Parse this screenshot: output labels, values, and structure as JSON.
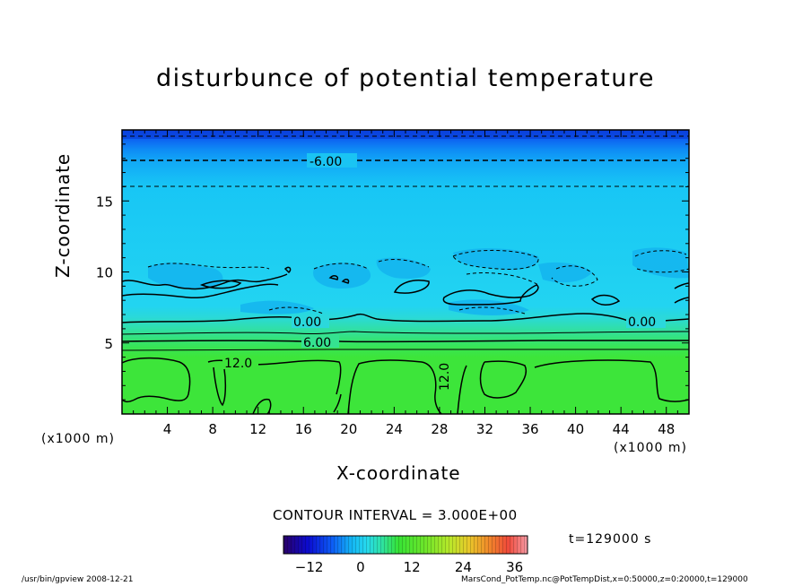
{
  "chart_data": {
    "type": "heatmap",
    "title": "disturbunce of potential temperature",
    "xlabel": "X-coordinate",
    "ylabel": "Z-coordinate",
    "x_unit": "(x1000 m)",
    "y_unit": "(x1000 m)",
    "xlim": [
      0,
      50
    ],
    "ylim": [
      0,
      20
    ],
    "x_ticks": [
      4,
      8,
      12,
      16,
      20,
      24,
      28,
      32,
      36,
      40,
      44,
      48
    ],
    "y_ticks": [
      5,
      10,
      15
    ],
    "contour_labels": [
      {
        "text": "-6.00",
        "x": 19.5,
        "z": 18
      },
      {
        "text": "0.00",
        "x": 16.7,
        "z": 6.4
      },
      {
        "text": "0.00",
        "x": 46.5,
        "z": 6.4
      },
      {
        "text": "6.00",
        "x": 17.3,
        "z": 5.0
      },
      {
        "text": "12.0",
        "x": 10.5,
        "z": 3.5
      },
      {
        "text": "12.0",
        "x": 28.5,
        "z": 2.5
      }
    ],
    "colorbar": {
      "min": -18,
      "max": 39,
      "ticks": [
        -12,
        0,
        12,
        24,
        36
      ],
      "colors": [
        "#2a0066",
        "#0b0bd0",
        "#0d5df5",
        "#14b6f4",
        "#26d9ee",
        "#2ee2a8",
        "#36e336",
        "#6de52a",
        "#b8e82a",
        "#e8c82a",
        "#f08a2a",
        "#f04a3a",
        "#f59aa5"
      ]
    },
    "contour_interval": "CONTOUR INTERVAL = 3.000E+00",
    "time": "t=129000 s"
  },
  "footer": {
    "left": "/usr/bin/gpview   2008-12-21",
    "right": "MarsCond_PotTemp.nc@PotTempDist,x=0:50000,z=0:20000,t=129000"
  }
}
